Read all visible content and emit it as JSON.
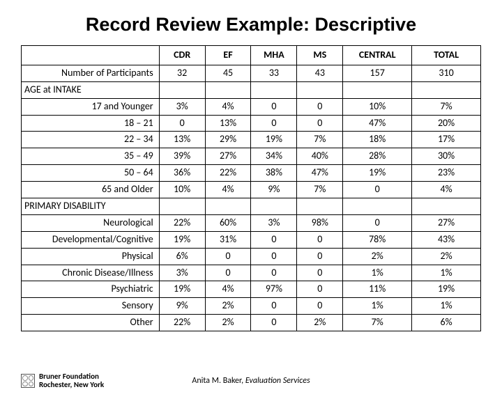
{
  "title": "Record Review Example:  Descriptive",
  "columns": [
    "CDR",
    "EF",
    "MHA",
    "MS",
    "CENTRAL",
    "TOTAL"
  ],
  "rows": [
    {
      "type": "data",
      "label": "Number of Participants",
      "values": [
        "32",
        "45",
        "33",
        "43",
        "157",
        "310"
      ]
    },
    {
      "type": "section",
      "label": "AGE at INTAKE"
    },
    {
      "type": "data",
      "label": "17 and Younger",
      "values": [
        "3%",
        "4%",
        "0",
        "0",
        "10%",
        "7%"
      ]
    },
    {
      "type": "data",
      "label": "18 – 21",
      "values": [
        "0",
        "13%",
        "0",
        "0",
        "47%",
        "20%"
      ]
    },
    {
      "type": "data",
      "label": "22 – 34",
      "values": [
        "13%",
        "29%",
        "19%",
        "7%",
        "18%",
        "17%"
      ]
    },
    {
      "type": "data",
      "label": "35 – 49",
      "values": [
        "39%",
        "27%",
        "34%",
        "40%",
        "28%",
        "30%"
      ]
    },
    {
      "type": "data",
      "label": "50 – 64",
      "values": [
        "36%",
        "22%",
        "38%",
        "47%",
        "19%",
        "23%"
      ]
    },
    {
      "type": "data",
      "label": "65 and Older",
      "values": [
        "10%",
        "4%",
        "9%",
        "7%",
        "0",
        "4%"
      ]
    },
    {
      "type": "section",
      "label": "PRIMARY DISABILITY"
    },
    {
      "type": "data",
      "label": "Neurological",
      "values": [
        "22%",
        "60%",
        "3%",
        "98%",
        "0",
        "27%"
      ]
    },
    {
      "type": "data",
      "label": "Developmental/Cognitive",
      "values": [
        "19%",
        "31%",
        "0",
        "0",
        "78%",
        "43%"
      ]
    },
    {
      "type": "data",
      "label": "Physical",
      "values": [
        "6%",
        "0",
        "0",
        "0",
        "2%",
        "2%"
      ]
    },
    {
      "type": "data",
      "label": "Chronic Disease/Illness",
      "values": [
        "3%",
        "0",
        "0",
        "0",
        "1%",
        "1%"
      ]
    },
    {
      "type": "data",
      "label": "Psychiatric",
      "values": [
        "19%",
        "4%",
        "97%",
        "0",
        "11%",
        "19%"
      ]
    },
    {
      "type": "data",
      "label": "Sensory",
      "values": [
        "9%",
        "2%",
        "0",
        "0",
        "1%",
        "1%"
      ]
    },
    {
      "type": "data",
      "label": "Other",
      "values": [
        "22%",
        "2%",
        "0",
        "2%",
        "7%",
        "6%"
      ]
    }
  ],
  "footer": {
    "org_line1": "Bruner Foundation",
    "org_line2": "Rochester, New York",
    "author": "Anita M. Baker, ",
    "author_org": "Evaluation Services"
  },
  "style": {
    "col_widths_pct": [
      30,
      10,
      10,
      10,
      10,
      15,
      15
    ],
    "border_color": "#000000",
    "background": "#ffffff",
    "title_fontsize": 27,
    "body_fontsize": 14
  }
}
